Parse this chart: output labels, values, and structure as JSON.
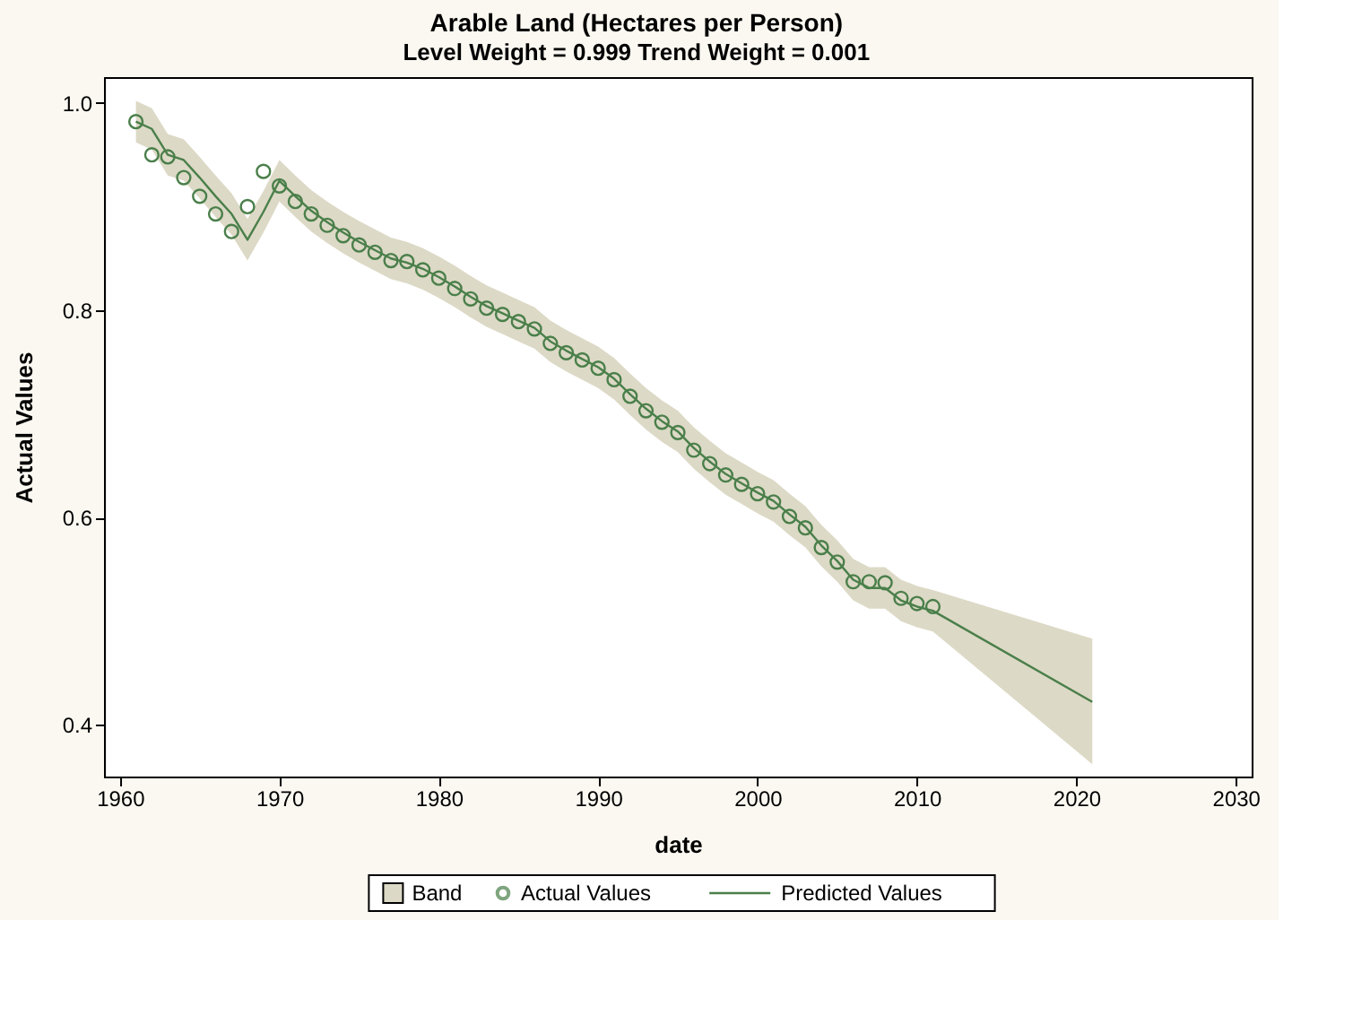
{
  "chart_data": {
    "type": "line",
    "title": "Arable Land (Hectares per Person)",
    "subtitle": "Level Weight = 0.999      Trend Weight = 0.001",
    "xlabel": "date",
    "ylabel": "Actual Values",
    "xlim": [
      1959,
      2031
    ],
    "xticks": [
      1960,
      1970,
      1980,
      1990,
      2000,
      2010,
      2020,
      2030
    ],
    "ylim": [
      0.35,
      1.025
    ],
    "yticks": [
      0.4,
      0.6,
      0.8,
      {
        "value": 1.0,
        "label": "1.0"
      }
    ],
    "grid": false,
    "legend": "bottom",
    "series": [
      {
        "name": "Band",
        "type": "area",
        "color": "#dcd9c6"
      },
      {
        "name": "Actual Values",
        "type": "scatter",
        "marker": "circle",
        "color": "#4a7f4a",
        "x": [
          1961,
          1962,
          1963,
          1964,
          1965,
          1966,
          1967,
          1968,
          1969,
          1970,
          1971,
          1972,
          1973,
          1974,
          1975,
          1976,
          1977,
          1978,
          1979,
          1980,
          1981,
          1982,
          1983,
          1984,
          1985,
          1986,
          1987,
          1988,
          1989,
          1990,
          1991,
          1992,
          1993,
          1994,
          1995,
          1996,
          1997,
          1998,
          1999,
          2000,
          2001,
          2002,
          2003,
          2004,
          2005,
          2006,
          2007,
          2008,
          2009,
          2010,
          2011
        ],
        "values": [
          0.982,
          0.95,
          0.948,
          0.928,
          0.91,
          0.893,
          0.876,
          0.9,
          0.934,
          0.92,
          0.905,
          0.893,
          0.882,
          0.872,
          0.863,
          0.856,
          0.848,
          0.847,
          0.839,
          0.831,
          0.821,
          0.811,
          0.802,
          0.796,
          0.789,
          0.782,
          0.768,
          0.759,
          0.752,
          0.744,
          0.733,
          0.717,
          0.703,
          0.692,
          0.682,
          0.665,
          0.652,
          0.641,
          0.632,
          0.623,
          0.615,
          0.601,
          0.59,
          0.571,
          0.557,
          0.538,
          0.538,
          0.537,
          0.522,
          0.517,
          0.514
        ]
      },
      {
        "name": "Predicted Values",
        "line_style": "solid",
        "color": "#4a7f4a",
        "x": [
          1961,
          1962,
          1963,
          1964,
          1965,
          1966,
          1967,
          1968,
          1969,
          1970,
          1971,
          1972,
          1973,
          1974,
          1975,
          1976,
          1977,
          1978,
          1979,
          1980,
          1981,
          1982,
          1983,
          1984,
          1985,
          1986,
          1987,
          1988,
          1989,
          1990,
          1991,
          1992,
          1993,
          1994,
          1995,
          1996,
          1997,
          1998,
          1999,
          2000,
          2001,
          2002,
          2003,
          2004,
          2005,
          2006,
          2007,
          2008,
          2009,
          2010,
          2011,
          2021
        ],
        "values": [
          0.982,
          0.975,
          0.95,
          0.945,
          0.928,
          0.91,
          0.893,
          0.868,
          0.895,
          0.925,
          0.91,
          0.896,
          0.885,
          0.875,
          0.866,
          0.858,
          0.85,
          0.846,
          0.84,
          0.832,
          0.823,
          0.813,
          0.804,
          0.797,
          0.79,
          0.783,
          0.77,
          0.761,
          0.753,
          0.745,
          0.734,
          0.719,
          0.705,
          0.693,
          0.683,
          0.667,
          0.654,
          0.642,
          0.633,
          0.624,
          0.616,
          0.603,
          0.591,
          0.573,
          0.558,
          0.54,
          0.532,
          0.532,
          0.52,
          0.514,
          0.51,
          0.422
        ],
        "lower": [
          0.962,
          0.955,
          0.93,
          0.925,
          0.908,
          0.89,
          0.873,
          0.848,
          0.875,
          0.905,
          0.89,
          0.876,
          0.865,
          0.855,
          0.846,
          0.838,
          0.83,
          0.826,
          0.82,
          0.812,
          0.803,
          0.793,
          0.784,
          0.777,
          0.77,
          0.763,
          0.75,
          0.741,
          0.733,
          0.725,
          0.714,
          0.699,
          0.685,
          0.673,
          0.663,
          0.647,
          0.634,
          0.622,
          0.613,
          0.604,
          0.596,
          0.583,
          0.571,
          0.553,
          0.538,
          0.52,
          0.512,
          0.512,
          0.5,
          0.494,
          0.49,
          0.362
        ],
        "upper": [
          1.002,
          0.995,
          0.97,
          0.965,
          0.948,
          0.93,
          0.913,
          0.888,
          0.915,
          0.945,
          0.93,
          0.916,
          0.905,
          0.895,
          0.886,
          0.878,
          0.87,
          0.866,
          0.86,
          0.852,
          0.843,
          0.833,
          0.824,
          0.817,
          0.81,
          0.803,
          0.79,
          0.781,
          0.773,
          0.765,
          0.754,
          0.739,
          0.725,
          0.713,
          0.703,
          0.687,
          0.674,
          0.662,
          0.653,
          0.644,
          0.636,
          0.623,
          0.611,
          0.593,
          0.578,
          0.56,
          0.552,
          0.552,
          0.54,
          0.534,
          0.53,
          0.483
        ]
      }
    ]
  }
}
